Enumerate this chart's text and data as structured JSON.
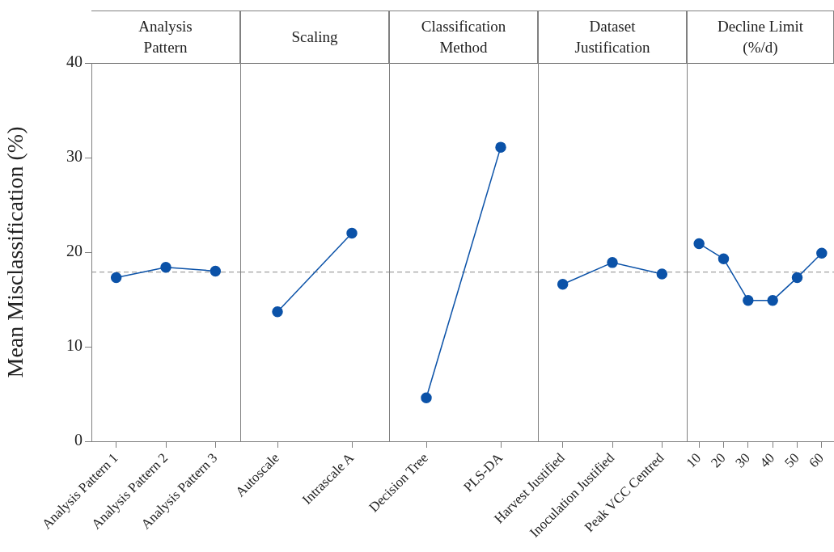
{
  "chart_data": [
    {
      "type": "line",
      "title": "Analysis Pattern",
      "ylabel": "Mean Misclassification (%)",
      "categories": [
        "Analysis Pattern 1",
        "Analysis Pattern 2",
        "Analysis Pattern 3"
      ],
      "series": [
        {
          "color": "#0b52a8",
          "values": [
            17.3,
            18.4,
            18.0
          ]
        }
      ],
      "ylim": [
        0,
        40
      ],
      "yticks": [
        0,
        10,
        20,
        30,
        40
      ],
      "marker": "circle",
      "line_style": "solid",
      "ref_lines": [
        {
          "axis": "y",
          "value": 17.9,
          "color": "#a0a0a0",
          "line_style": "dashed"
        }
      ]
    },
    {
      "type": "line",
      "title": "Scaling",
      "categories": [
        "Autoscale",
        "Intrascale A"
      ],
      "series": [
        {
          "color": "#0b52a8",
          "values": [
            13.7,
            22.0
          ]
        }
      ],
      "ylim": [
        0,
        40
      ],
      "yticks": [
        0,
        10,
        20,
        30,
        40
      ],
      "tick_labels": "x",
      "marker": "circle",
      "line_style": "solid",
      "ref_lines": [
        {
          "axis": "y",
          "value": 17.9,
          "color": "#a0a0a0",
          "line_style": "dashed"
        }
      ]
    },
    {
      "type": "line",
      "title": "Classification Method",
      "categories": [
        "Decision Tree",
        "PLS-DA"
      ],
      "series": [
        {
          "color": "#0b52a8",
          "values": [
            4.6,
            31.1
          ]
        }
      ],
      "ylim": [
        0,
        40
      ],
      "yticks": [
        0,
        10,
        20,
        30,
        40
      ],
      "tick_labels": "x",
      "marker": "circle",
      "line_style": "solid",
      "ref_lines": [
        {
          "axis": "y",
          "value": 17.9,
          "color": "#a0a0a0",
          "line_style": "dashed"
        }
      ]
    },
    {
      "type": "line",
      "title": "Dataset Justification",
      "categories": [
        "Harvest Justified",
        "Inoculation Justified",
        "Peak VCC Centred"
      ],
      "series": [
        {
          "color": "#0b52a8",
          "values": [
            16.6,
            18.9,
            17.7
          ]
        }
      ],
      "ylim": [
        0,
        40
      ],
      "yticks": [
        0,
        10,
        20,
        30,
        40
      ],
      "tick_labels": "x",
      "marker": "circle",
      "line_style": "solid",
      "ref_lines": [
        {
          "axis": "y",
          "value": 17.9,
          "color": "#a0a0a0",
          "line_style": "dashed"
        }
      ]
    },
    {
      "type": "line",
      "title": "Decline Limit (%/d)",
      "categories": [
        "10",
        "20",
        "30",
        "40",
        "50",
        "60"
      ],
      "series": [
        {
          "color": "#0b52a8",
          "values": [
            20.9,
            19.3,
            14.9,
            14.9,
            17.3,
            19.9
          ]
        }
      ],
      "ylim": [
        0,
        40
      ],
      "yticks": [
        0,
        10,
        20,
        30,
        40
      ],
      "tick_labels": "x",
      "marker": "circle",
      "line_style": "solid",
      "ref_lines": [
        {
          "axis": "y",
          "value": 17.9,
          "color": "#a0a0a0",
          "line_style": "dashed"
        }
      ]
    }
  ]
}
